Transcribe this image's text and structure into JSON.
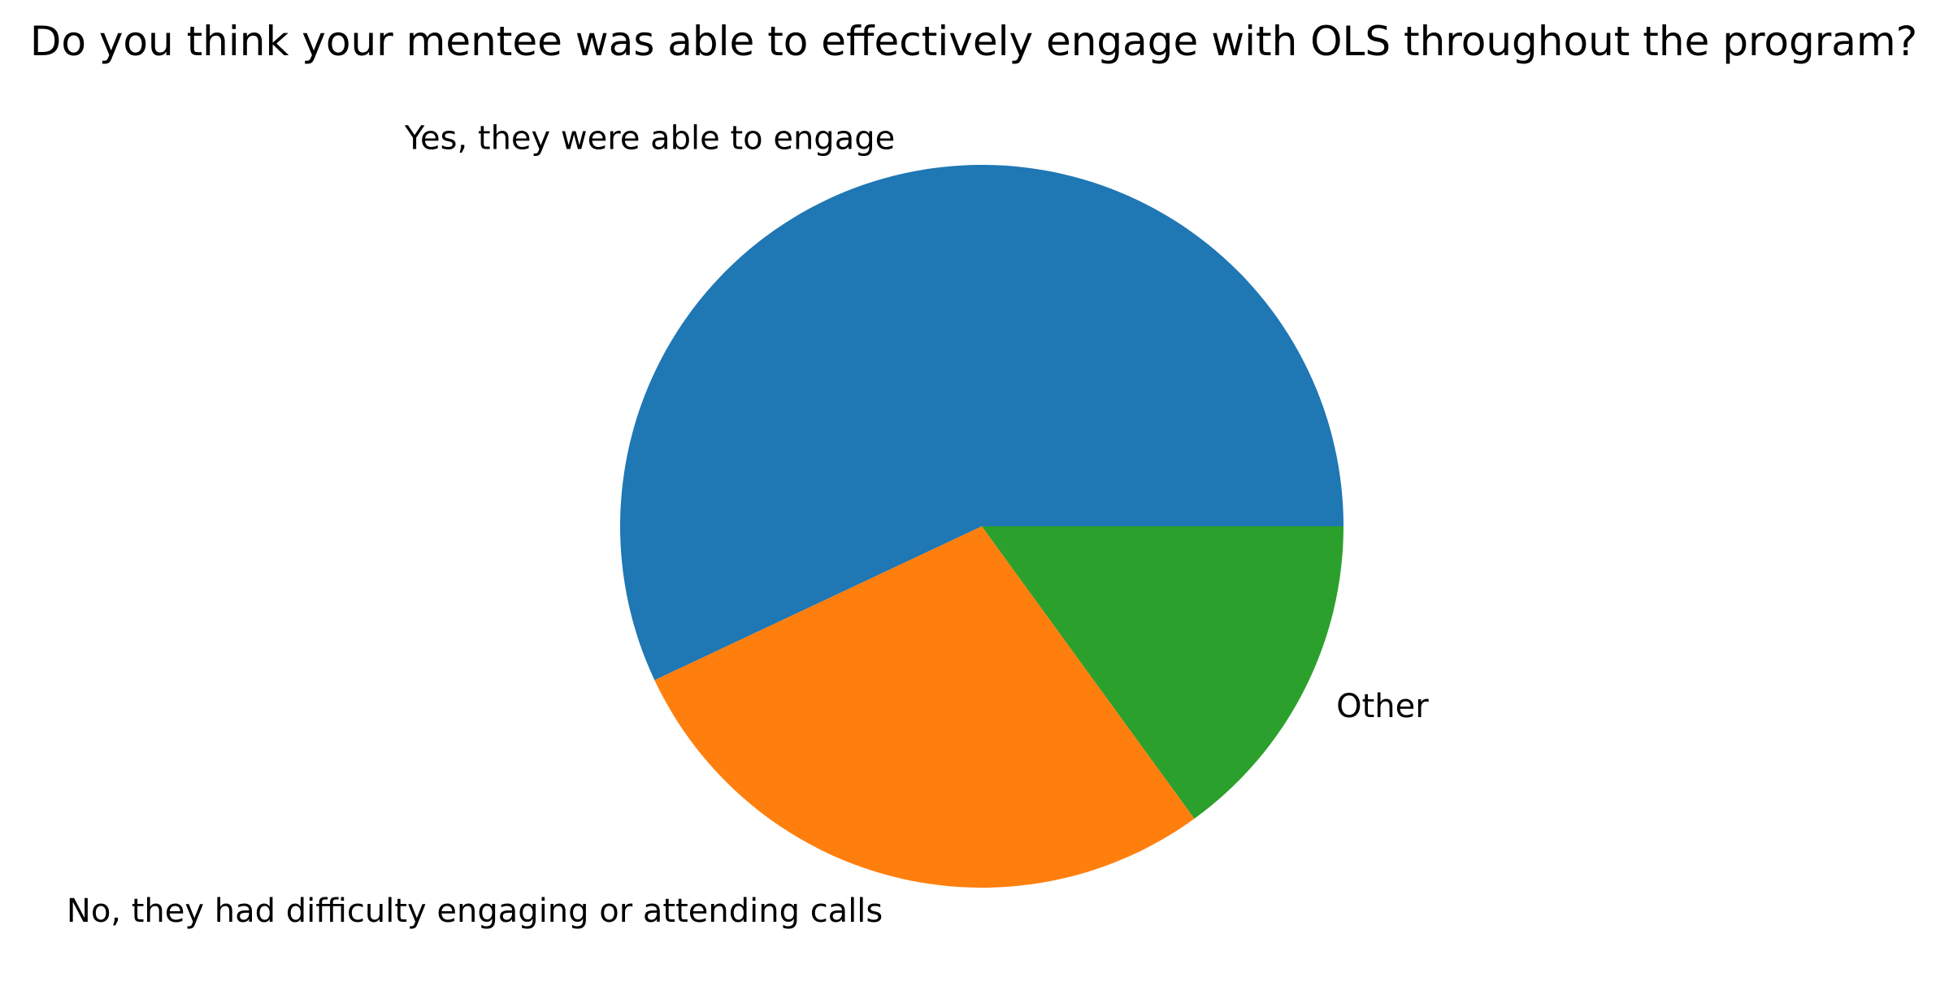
{
  "chart_data": {
    "type": "pie",
    "title": "Do you think your mentee was able to effectively engage with OLS throughout the program?",
    "categories": [
      "Yes, they were able to engage",
      "No, they had difficulty engaging or attending calls",
      "Other"
    ],
    "values": [
      57,
      28,
      15
    ],
    "colors": [
      "#1f77b4",
      "#ff7f0e",
      "#2ca02c"
    ],
    "start_angle_deg": 0,
    "direction": "counterclockwise",
    "legend": "none"
  }
}
